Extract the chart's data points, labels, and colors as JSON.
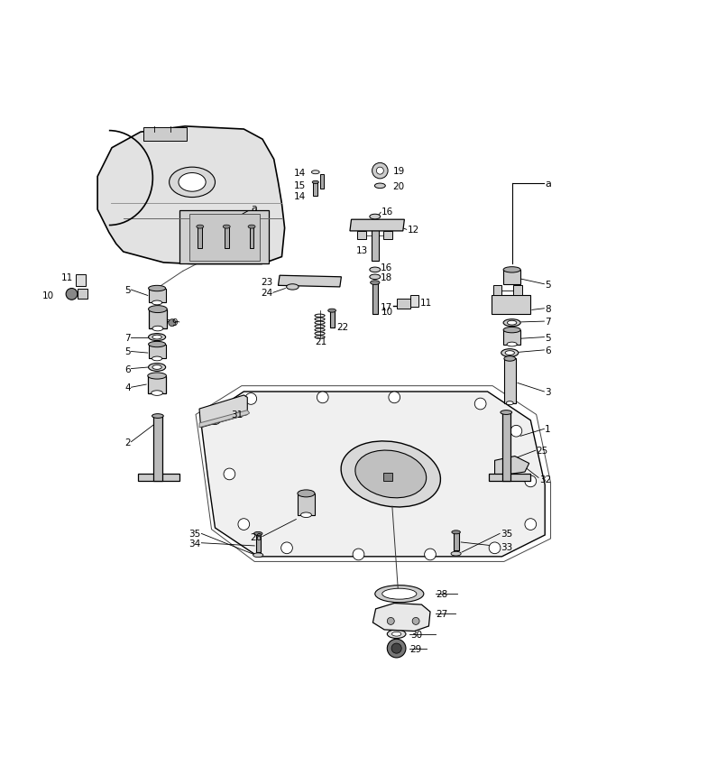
{
  "bg_color": "#ffffff",
  "line_color": "#000000",
  "fig_width": 7.95,
  "fig_height": 8.7,
  "dpi": 100
}
